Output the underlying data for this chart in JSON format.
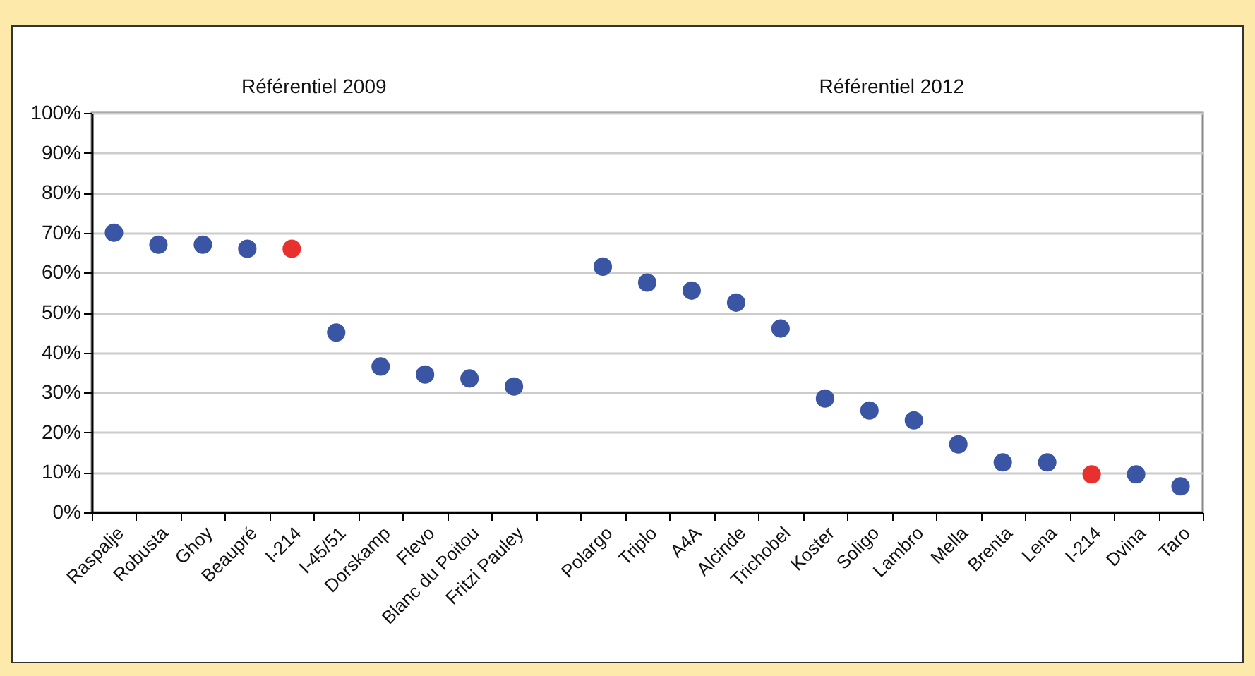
{
  "chart_data": {
    "type": "scatter",
    "categories": [
      "Raspalje",
      "Robusta",
      "Ghoy",
      "Beaupré",
      "I-214",
      "I-45/51",
      "Dorskamp",
      "Flevo",
      "Blanc du Poitou",
      "Fritzi Pauley",
      null,
      "Polargo",
      "Triplo",
      "A4A",
      "Alcinde",
      "Trichobel",
      "Koster",
      "Soligo",
      "Lambro",
      "Mella",
      "Brenta",
      "Lena",
      "I-214",
      "Dvina",
      "Taro"
    ],
    "series": [
      {
        "values": [
          70,
          67,
          67,
          66,
          66,
          45,
          36.5,
          34.5,
          33.5,
          31.5,
          null,
          61.5,
          57.5,
          55.5,
          52.5,
          46,
          28.5,
          25.5,
          23,
          17,
          12.5,
          12.5,
          9.5,
          9.5,
          6.5
        ],
        "colors": [
          "#3a55a4",
          "#3a55a4",
          "#3a55a4",
          "#3a55a4",
          "#e8312f",
          "#3a55a4",
          "#3a55a4",
          "#3a55a4",
          "#3a55a4",
          "#3a55a4",
          null,
          "#3a55a4",
          "#3a55a4",
          "#3a55a4",
          "#3a55a4",
          "#3a55a4",
          "#3a55a4",
          "#3a55a4",
          "#3a55a4",
          "#3a55a4",
          "#3a55a4",
          "#3a55a4",
          "#e8312f",
          "#3a55a4",
          "#3a55a4"
        ]
      }
    ],
    "annotations": [
      "Référentiel 2009",
      "Référentiel 2012"
    ],
    "ylim": [
      0,
      100
    ],
    "yticks": [
      {
        "value": 0,
        "label": "0%"
      },
      {
        "value": 10,
        "label": "10%"
      },
      {
        "value": 20,
        "label": "20%"
      },
      {
        "value": 30,
        "label": "30%"
      },
      {
        "value": 40,
        "label": "40%"
      },
      {
        "value": 50,
        "label": "50%"
      },
      {
        "value": 60,
        "label": "60%"
      },
      {
        "value": 70,
        "label": "70%"
      },
      {
        "value": 80,
        "label": "80%"
      },
      {
        "value": 90,
        "label": "90%"
      },
      {
        "value": 100,
        "label": "100%"
      }
    ],
    "grid": "y",
    "marker": "circle"
  }
}
